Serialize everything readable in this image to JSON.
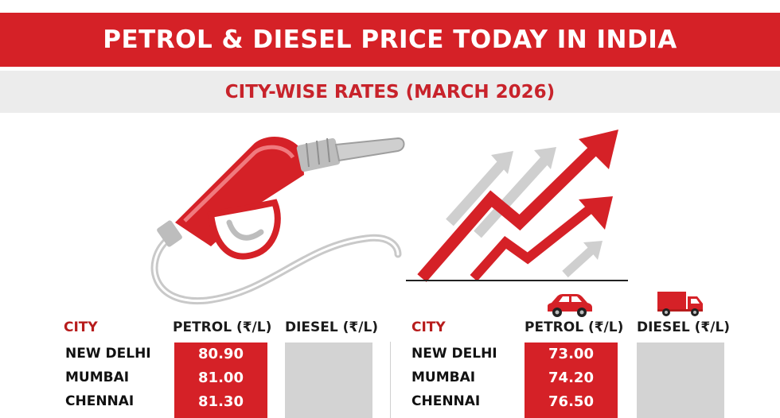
{
  "title": "PETROL & DIESEL PRICE TODAY IN INDIA",
  "subtitle": "CITY-WISE RATES (MARCH 2026)",
  "icons": [
    "fuel-nozzle-icon",
    "rising-arrows-icon",
    "car-icon",
    "truck-icon"
  ],
  "colors": {
    "accent": "#d52127",
    "subtitle_bg": "#ececec",
    "placeholder": "#d3d3d3"
  },
  "tables": [
    {
      "headers": {
        "city": "CITY",
        "petrol": "PETROL (₹/L)",
        "diesel": "DIESEL (₹/L)"
      },
      "rows": [
        {
          "city": "NEW DELHI",
          "petrol": "80.90"
        },
        {
          "city": "MUMBAI",
          "petrol": "81.00"
        },
        {
          "city": "CHENNAI",
          "petrol": "81.30"
        }
      ]
    },
    {
      "headers": {
        "city": "CITY",
        "petrol": "PETROL (₹/L)",
        "diesel": "DIESEL (₹/L)"
      },
      "rows": [
        {
          "city": "NEW DELHI",
          "petrol": "73.00"
        },
        {
          "city": "MUMBAI",
          "petrol": "74.20"
        },
        {
          "city": "CHENNAI",
          "petrol": "76.50"
        }
      ]
    }
  ]
}
